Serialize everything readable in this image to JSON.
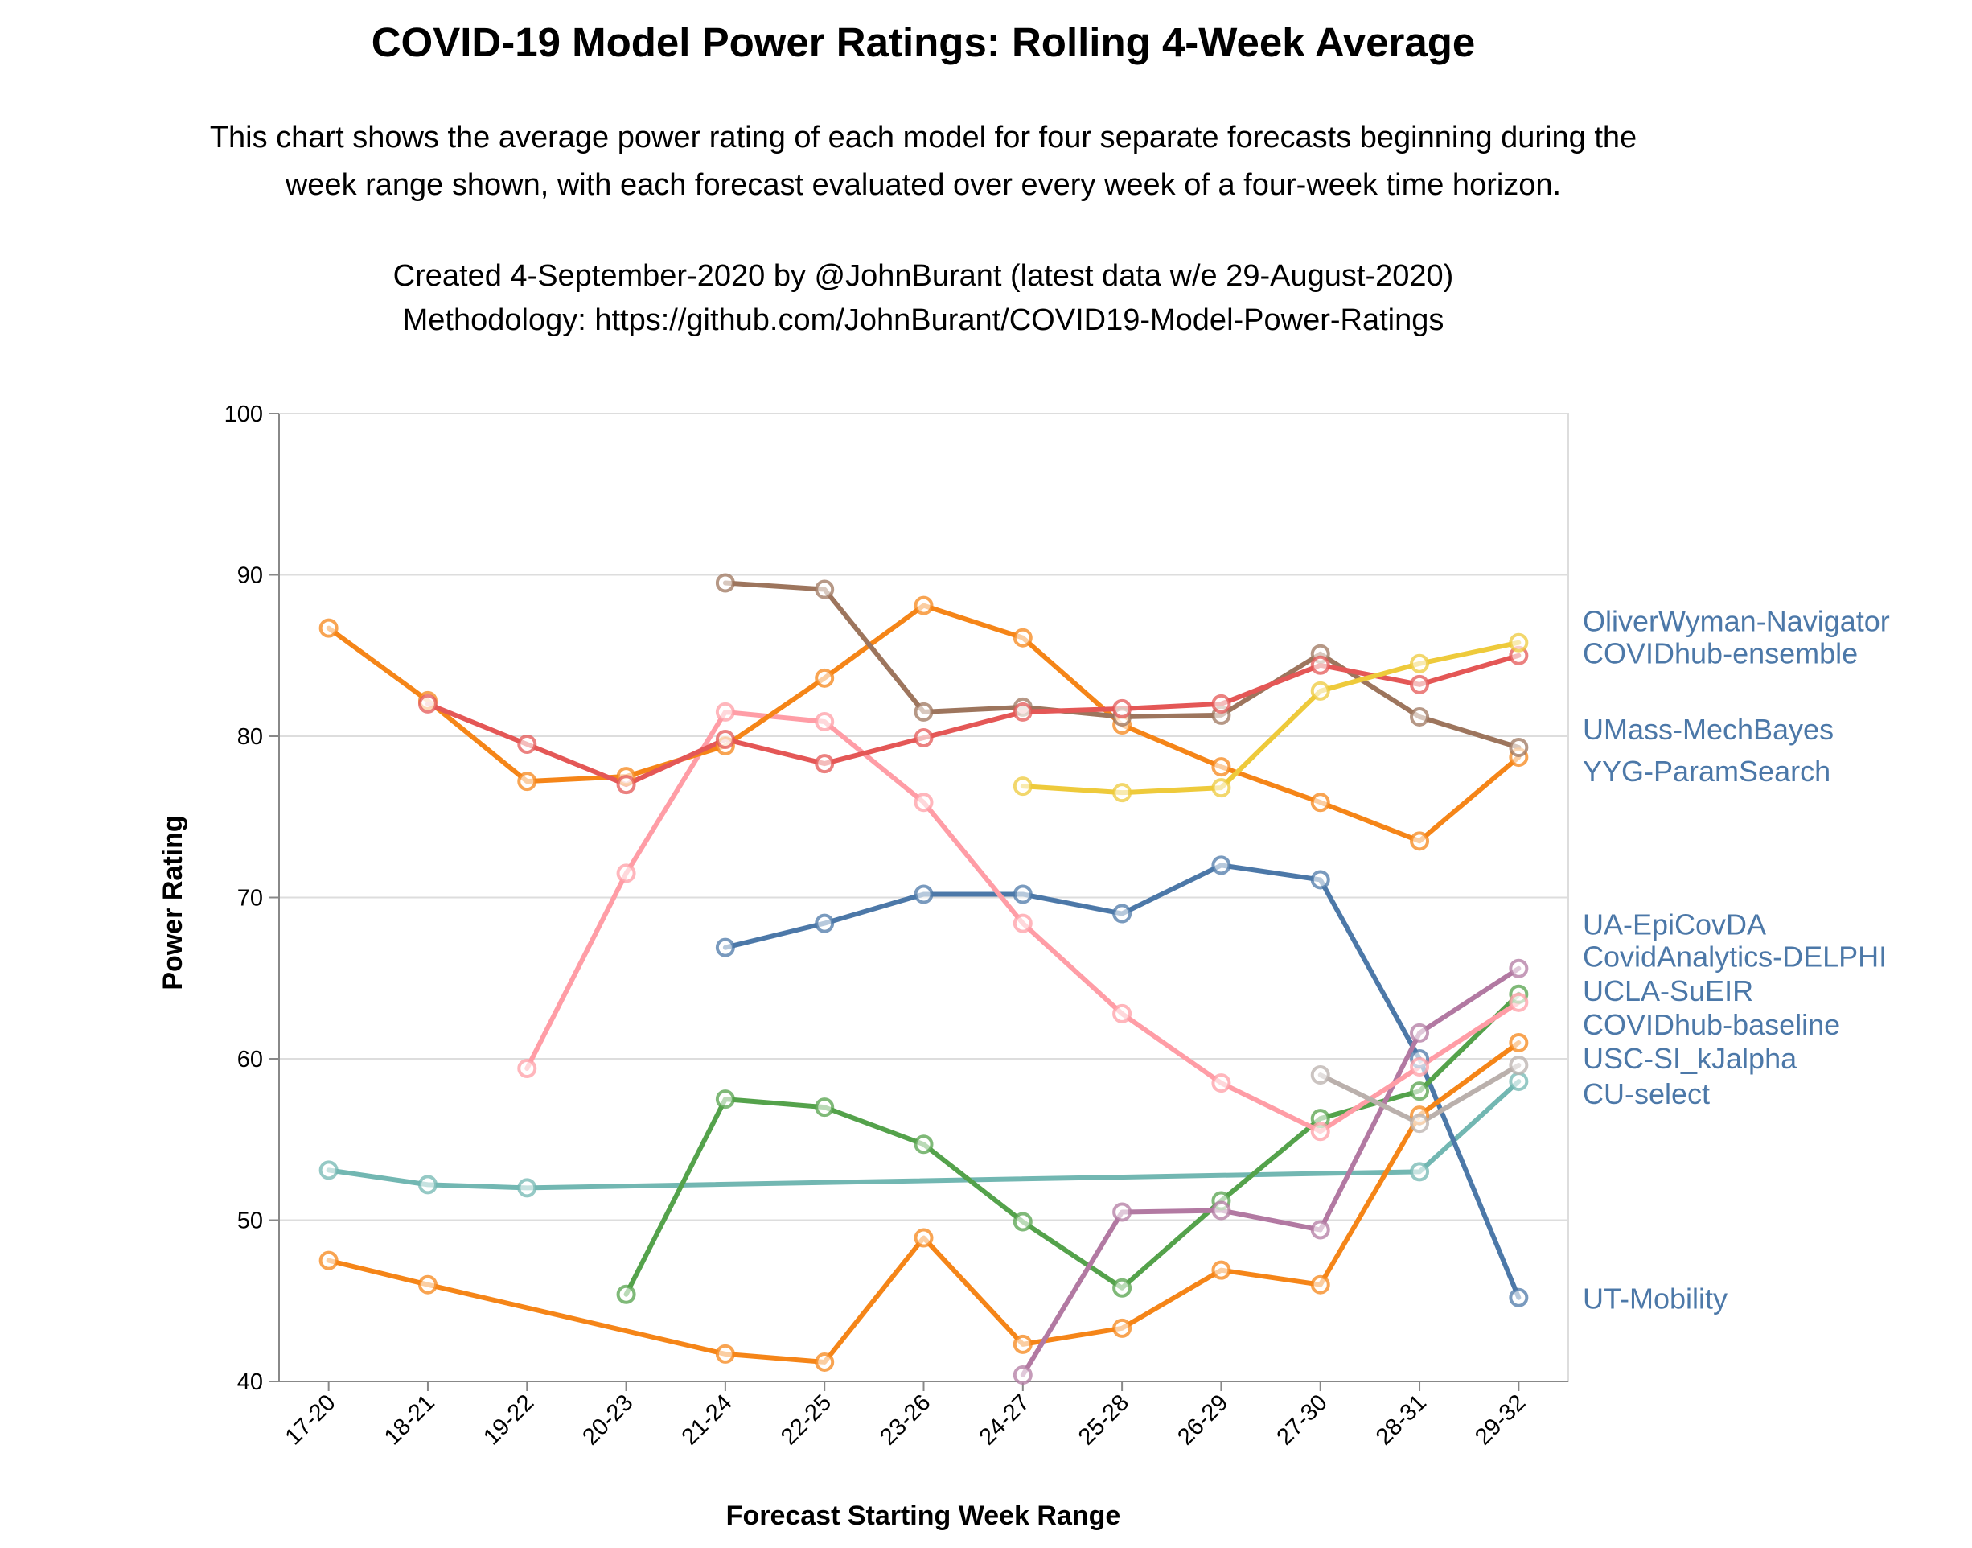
{
  "chart_data": {
    "type": "line",
    "title": "COVID-19 Model Power Ratings: Rolling 4-Week Average",
    "subtitle": [
      "This chart shows the average power rating of each model for four separate forecasts beginning during the",
      "week range shown, with each forecast evaluated over every week of a four-week time horizon.",
      "",
      "Created 4-September-2020 by @JohnBurant (latest data w/e 29-August-2020)",
      "Methodology: https://github.com/JohnBurant/COVID19-Model-Power-Ratings"
    ],
    "xlabel": "Forecast Starting Week Range",
    "ylabel": "Power Rating",
    "categories": [
      "17-20",
      "18-21",
      "19-22",
      "20-23",
      "21-24",
      "22-25",
      "23-26",
      "24-27",
      "25-28",
      "26-29",
      "27-30",
      "28-31",
      "29-32"
    ],
    "ylim": [
      40,
      100
    ],
    "yticks": [
      40,
      50,
      60,
      70,
      80,
      90,
      100
    ],
    "grid": true,
    "legend": "end-of-line labels on right",
    "series": [
      {
        "name": "CU-select",
        "color": "#72b7b2",
        "values": [
          53.1,
          52.2,
          52.0,
          null,
          null,
          null,
          null,
          null,
          null,
          null,
          null,
          53.0,
          58.6
        ]
      },
      {
        "name": "UT-Mobility",
        "color": "#4c78a8",
        "values": [
          null,
          null,
          null,
          null,
          66.9,
          68.4,
          70.2,
          70.2,
          69.0,
          72.0,
          71.1,
          60.0,
          45.2
        ]
      },
      {
        "name": "COVIDhub-baseline",
        "color": "#f58518",
        "values": [
          47.5,
          46.0,
          null,
          null,
          41.7,
          41.2,
          48.9,
          42.3,
          43.3,
          46.9,
          46.0,
          56.5,
          61.0
        ]
      },
      {
        "name": "UCLA-SuEIR",
        "color": "#54a24b",
        "values": [
          null,
          null,
          null,
          45.4,
          57.5,
          57.0,
          54.7,
          49.9,
          45.8,
          51.2,
          56.3,
          58.0,
          64.0
        ]
      },
      {
        "name": "CovidAnalytics-DELPHI",
        "color": "#b279a2",
        "values": [
          null,
          null,
          null,
          null,
          null,
          null,
          null,
          40.4,
          50.5,
          50.6,
          49.4,
          61.6,
          65.6
        ]
      },
      {
        "name": "UA-EpiCovDA",
        "color": "#ff9da6",
        "values": [
          null,
          null,
          59.4,
          71.5,
          81.5,
          80.9,
          75.9,
          68.4,
          62.8,
          58.5,
          55.5,
          59.5,
          63.5
        ]
      },
      {
        "name": "USC-SI_kJalpha",
        "color": "#bab0ac",
        "values": [
          null,
          null,
          null,
          null,
          null,
          null,
          null,
          null,
          null,
          null,
          59.0,
          56.0,
          59.6
        ]
      },
      {
        "name": "YYG-ParamSearch",
        "color": "#f58518",
        "values": [
          86.7,
          82.2,
          77.2,
          77.5,
          79.4,
          83.6,
          88.1,
          86.1,
          80.7,
          78.1,
          75.9,
          73.5,
          78.7
        ]
      },
      {
        "name": "UMass-MechBayes",
        "color": "#9d755d",
        "values": [
          null,
          null,
          null,
          null,
          89.5,
          89.1,
          81.5,
          81.8,
          81.2,
          81.3,
          85.1,
          81.2,
          79.3
        ]
      },
      {
        "name": "COVIDhub-ensemble",
        "color": "#e45756",
        "values": [
          null,
          82.0,
          79.5,
          77.0,
          79.8,
          78.3,
          79.9,
          81.5,
          81.7,
          82.0,
          84.4,
          83.2,
          85.0
        ]
      },
      {
        "name": "OliverWyman-Navigator",
        "color": "#eeca3b",
        "values": [
          null,
          null,
          null,
          null,
          null,
          null,
          null,
          76.9,
          76.5,
          76.8,
          82.8,
          84.5,
          85.8
        ]
      }
    ],
    "labels": [
      {
        "text": "OliverWyman-Navigator",
        "y": 87.1
      },
      {
        "text": "COVIDhub-ensemble",
        "y": 85.1
      },
      {
        "text": "UMass-MechBayes",
        "y": 80.4
      },
      {
        "text": "YYG-ParamSearch",
        "y": 77.8
      },
      {
        "text": "UA-EpiCovDA",
        "y": 68.3
      },
      {
        "text": "CovidAnalytics-DELPHI",
        "y": 66.3
      },
      {
        "text": "UCLA-SuEIR",
        "y": 64.2
      },
      {
        "text": "COVIDhub-baseline",
        "y": 62.1
      },
      {
        "text": "USC-SI_kJalpha",
        "y": 60.0
      },
      {
        "text": "CU-select",
        "y": 57.8
      },
      {
        "text": "UT-Mobility",
        "y": 45.1
      }
    ]
  }
}
